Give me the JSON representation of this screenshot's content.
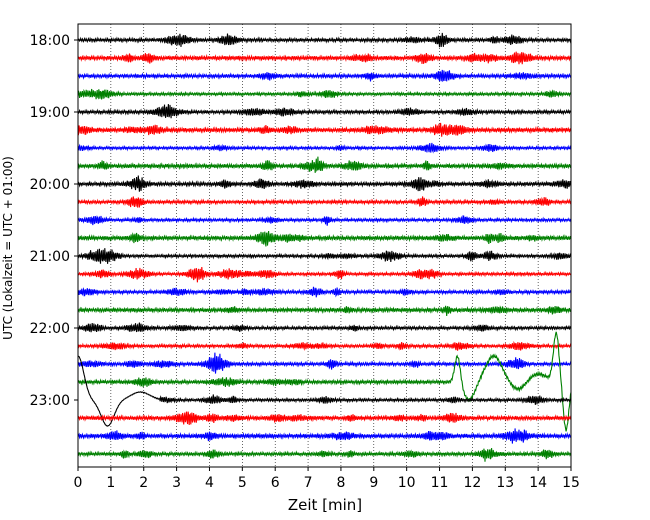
{
  "chart_data": {
    "type": "line",
    "title": "",
    "xlabel": "Zeit  [min]",
    "ylabel": "UTC (Lokalzeit = UTC + 01:00)",
    "xlim": [
      0,
      15
    ],
    "x_ticks": [
      "0",
      "1",
      "2",
      "3",
      "4",
      "5",
      "6",
      "7",
      "8",
      "9",
      "10",
      "11",
      "12",
      "13",
      "14",
      "15"
    ],
    "y_tick_labels": [
      "18:00",
      "19:00",
      "20:00",
      "21:00",
      "22:00",
      "23:00"
    ],
    "grid": "vertical dotted",
    "trace_colors": [
      "#000000",
      "#ff0000",
      "#0000ff",
      "#008000"
    ],
    "traces": [
      {
        "start": "18:00",
        "color": "#000000"
      },
      {
        "start": "18:15",
        "color": "#ff0000"
      },
      {
        "start": "18:30",
        "color": "#0000ff"
      },
      {
        "start": "18:45",
        "color": "#008000"
      },
      {
        "start": "19:00",
        "color": "#000000"
      },
      {
        "start": "19:15",
        "color": "#ff0000"
      },
      {
        "start": "19:30",
        "color": "#0000ff"
      },
      {
        "start": "19:45",
        "color": "#008000"
      },
      {
        "start": "20:00",
        "color": "#000000"
      },
      {
        "start": "20:15",
        "color": "#ff0000"
      },
      {
        "start": "20:30",
        "color": "#0000ff"
      },
      {
        "start": "20:45",
        "color": "#008000"
      },
      {
        "start": "21:00",
        "color": "#000000"
      },
      {
        "start": "21:15",
        "color": "#ff0000"
      },
      {
        "start": "21:30",
        "color": "#0000ff"
      },
      {
        "start": "21:45",
        "color": "#008000"
      },
      {
        "start": "22:00",
        "color": "#000000"
      },
      {
        "start": "22:15",
        "color": "#ff0000"
      },
      {
        "start": "22:30",
        "color": "#0000ff"
      },
      {
        "start": "22:45",
        "color": "#008000"
      },
      {
        "start": "23:00",
        "color": "#000000"
      },
      {
        "start": "23:15",
        "color": "#ff0000"
      },
      {
        "start": "23:30",
        "color": "#0000ff"
      },
      {
        "start": "23:45",
        "color": "#008000"
      }
    ]
  }
}
